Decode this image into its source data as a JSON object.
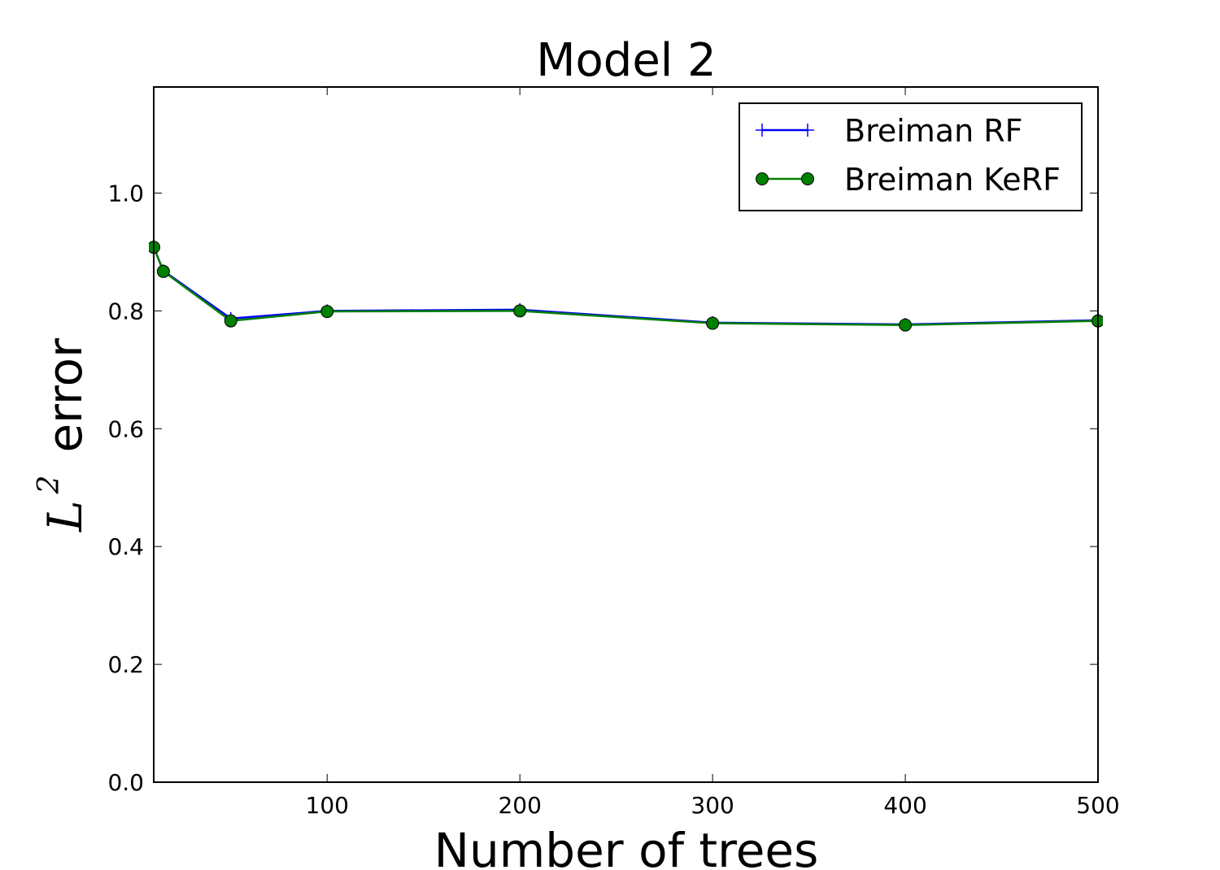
{
  "chart_data": {
    "type": "line",
    "title": "Model 2",
    "xlabel": "Number of trees",
    "ylabel": {
      "symbol": "L",
      "superscript": "2",
      "text": "error"
    },
    "xlim": [
      10,
      500
    ],
    "ylim": [
      0.0,
      1.18
    ],
    "xticks": [
      100,
      200,
      300,
      400,
      500
    ],
    "yticks": [
      0.0,
      0.2,
      0.4,
      0.6,
      0.8,
      1.0
    ],
    "xtick_labels": [
      "100",
      "200",
      "300",
      "400",
      "500"
    ],
    "ytick_labels": [
      "0.0",
      "0.2",
      "0.4",
      "0.6",
      "0.8",
      "1.0"
    ],
    "grid": false,
    "legend_position": "top-right",
    "series": [
      {
        "name": "Breiman RF",
        "color": "#0000ff",
        "marker": "plus",
        "x": [
          10,
          15,
          50,
          100,
          200,
          300,
          400,
          500
        ],
        "y": [
          0.908,
          0.868,
          0.787,
          0.8,
          0.802,
          0.78,
          0.777,
          0.784
        ]
      },
      {
        "name": "Breiman KeRF",
        "color": "#008000",
        "marker": "circle",
        "x": [
          10,
          15,
          50,
          100,
          200,
          300,
          400,
          500
        ],
        "y": [
          0.908,
          0.867,
          0.783,
          0.799,
          0.8,
          0.779,
          0.776,
          0.783
        ]
      }
    ]
  }
}
